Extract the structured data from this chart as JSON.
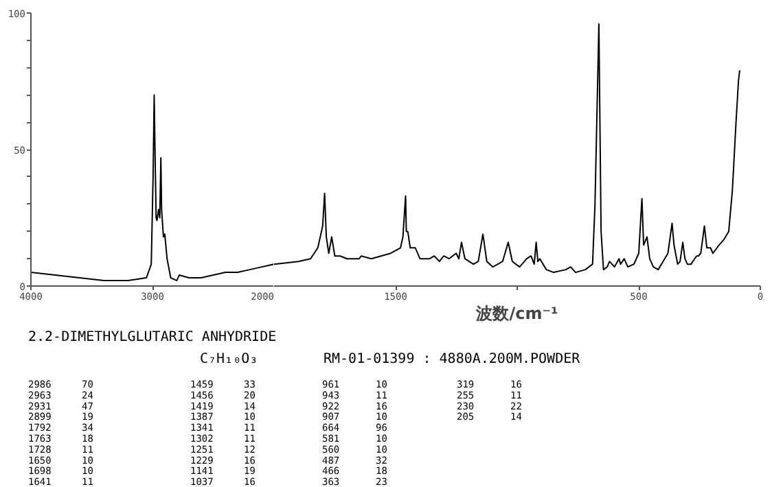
{
  "chart_data": [
    {
      "type": "line",
      "title": "2.2-DIMETHYLGLUTARIC ANHYDRIDE",
      "subtitle": "C₇H₁₀O₃",
      "x": [
        4000,
        3800,
        3600,
        3400,
        3200,
        3050,
        3010,
        2995,
        2986,
        2980,
        2970,
        2963,
        2950,
        2940,
        2931,
        2925,
        2910,
        2899,
        2880,
        2850,
        2800,
        2780,
        2700,
        2600,
        2500,
        2400,
        2300,
        2200,
        2100,
        2000
      ],
      "series": [
        {
          "color": "#000000",
          "values": [
            5,
            4,
            3,
            2,
            2,
            3,
            8,
            40,
            70,
            52,
            25,
            24,
            28,
            25,
            47,
            28,
            18,
            19,
            10,
            3,
            2,
            4,
            3,
            3,
            4,
            5,
            5,
            6,
            7,
            8
          ]
        }
      ],
      "xlim": [
        4000,
        2000
      ],
      "xticks": [
        4000,
        3000,
        2000
      ],
      "ylim": [
        0,
        100
      ],
      "yticks": [
        0,
        {
          "value": 10,
          "label": null
        },
        {
          "value": 20,
          "label": null
        },
        {
          "value": 30,
          "label": null
        },
        {
          "value": 40,
          "label": null
        },
        50,
        {
          "value": 60,
          "label": null
        },
        {
          "value": 70,
          "label": null
        },
        {
          "value": 80,
          "label": null
        },
        {
          "value": 90,
          "label": null
        },
        100
      ],
      "annotations": [
        "RM-01-01399 : 4880A.200M.POWDER",
        "2986 70",
        "2963 24",
        "2931 47",
        "2899 19",
        "1792 34",
        "1763 18",
        "1728 11",
        "1650 10",
        "1698 10",
        "1641 11",
        "1459 33",
        "1456 20",
        "1419 14",
        "1387 10",
        "1341 11",
        "1302 11",
        "1251 12",
        "1229 16",
        "1141 19",
        "1037 16",
        "961 10",
        "943 11",
        "922 16",
        "907 10",
        "664 96",
        "581 10",
        "560 10",
        "487 32",
        "466 18",
        "363 23",
        "319 16",
        "255 11",
        "230 22",
        "205 14"
      ]
    },
    {
      "type": "line",
      "xlabel": "波数/cm⁻¹",
      "x": [
        2000,
        1900,
        1850,
        1820,
        1800,
        1792,
        1785,
        1775,
        1763,
        1750,
        1728,
        1700,
        1690,
        1650,
        1641,
        1600,
        1520,
        1480,
        1470,
        1459,
        1456,
        1450,
        1440,
        1419,
        1400,
        1387,
        1360,
        1341,
        1320,
        1302,
        1280,
        1251,
        1240,
        1229,
        1215,
        1180,
        1160,
        1141,
        1125,
        1100,
        1060,
        1037,
        1020,
        990,
        961,
        943,
        930,
        922,
        915,
        907,
        880,
        850,
        800,
        780,
        760,
        720,
        690,
        680,
        664,
        655,
        645,
        630,
        620,
        600,
        581,
        575,
        560,
        545,
        520,
        500,
        487,
        480,
        466,
        455,
        440,
        420,
        400,
        380,
        363,
        355,
        340,
        330,
        319,
        310,
        300,
        285,
        270,
        262,
        255,
        245,
        230,
        220,
        205,
        195,
        170,
        150,
        130,
        115,
        100,
        90,
        85
      ],
      "series": [
        {
          "color": "#000000",
          "values": [
            8,
            9,
            10,
            14,
            22,
            34,
            18,
            12,
            18,
            11,
            11,
            10,
            10,
            10,
            11,
            10,
            12,
            14,
            18,
            33,
            20,
            20,
            14,
            14,
            10,
            10,
            10,
            11,
            9,
            11,
            10,
            12,
            10,
            16,
            10,
            8,
            9,
            19,
            9,
            7,
            9,
            16,
            9,
            7,
            10,
            11,
            8,
            16,
            9,
            10,
            6,
            5,
            6,
            7,
            5,
            6,
            8,
            30,
            96,
            20,
            6,
            7,
            9,
            7,
            10,
            8,
            10,
            7,
            8,
            12,
            32,
            15,
            18,
            10,
            7,
            6,
            9,
            12,
            23,
            15,
            8,
            9,
            16,
            10,
            8,
            8,
            10,
            11,
            11,
            12,
            22,
            14,
            14,
            12,
            15,
            17,
            20,
            35,
            60,
            75,
            79
          ]
        }
      ],
      "xlim": [
        2000,
        0
      ],
      "xticks": [
        1500,
        {
          "value": 1000,
          "label": null
        },
        500,
        0
      ],
      "ylim": [
        0,
        100
      ],
      "yticks": [
        0,
        50,
        100
      ],
      "tick_labels": "x"
    }
  ]
}
